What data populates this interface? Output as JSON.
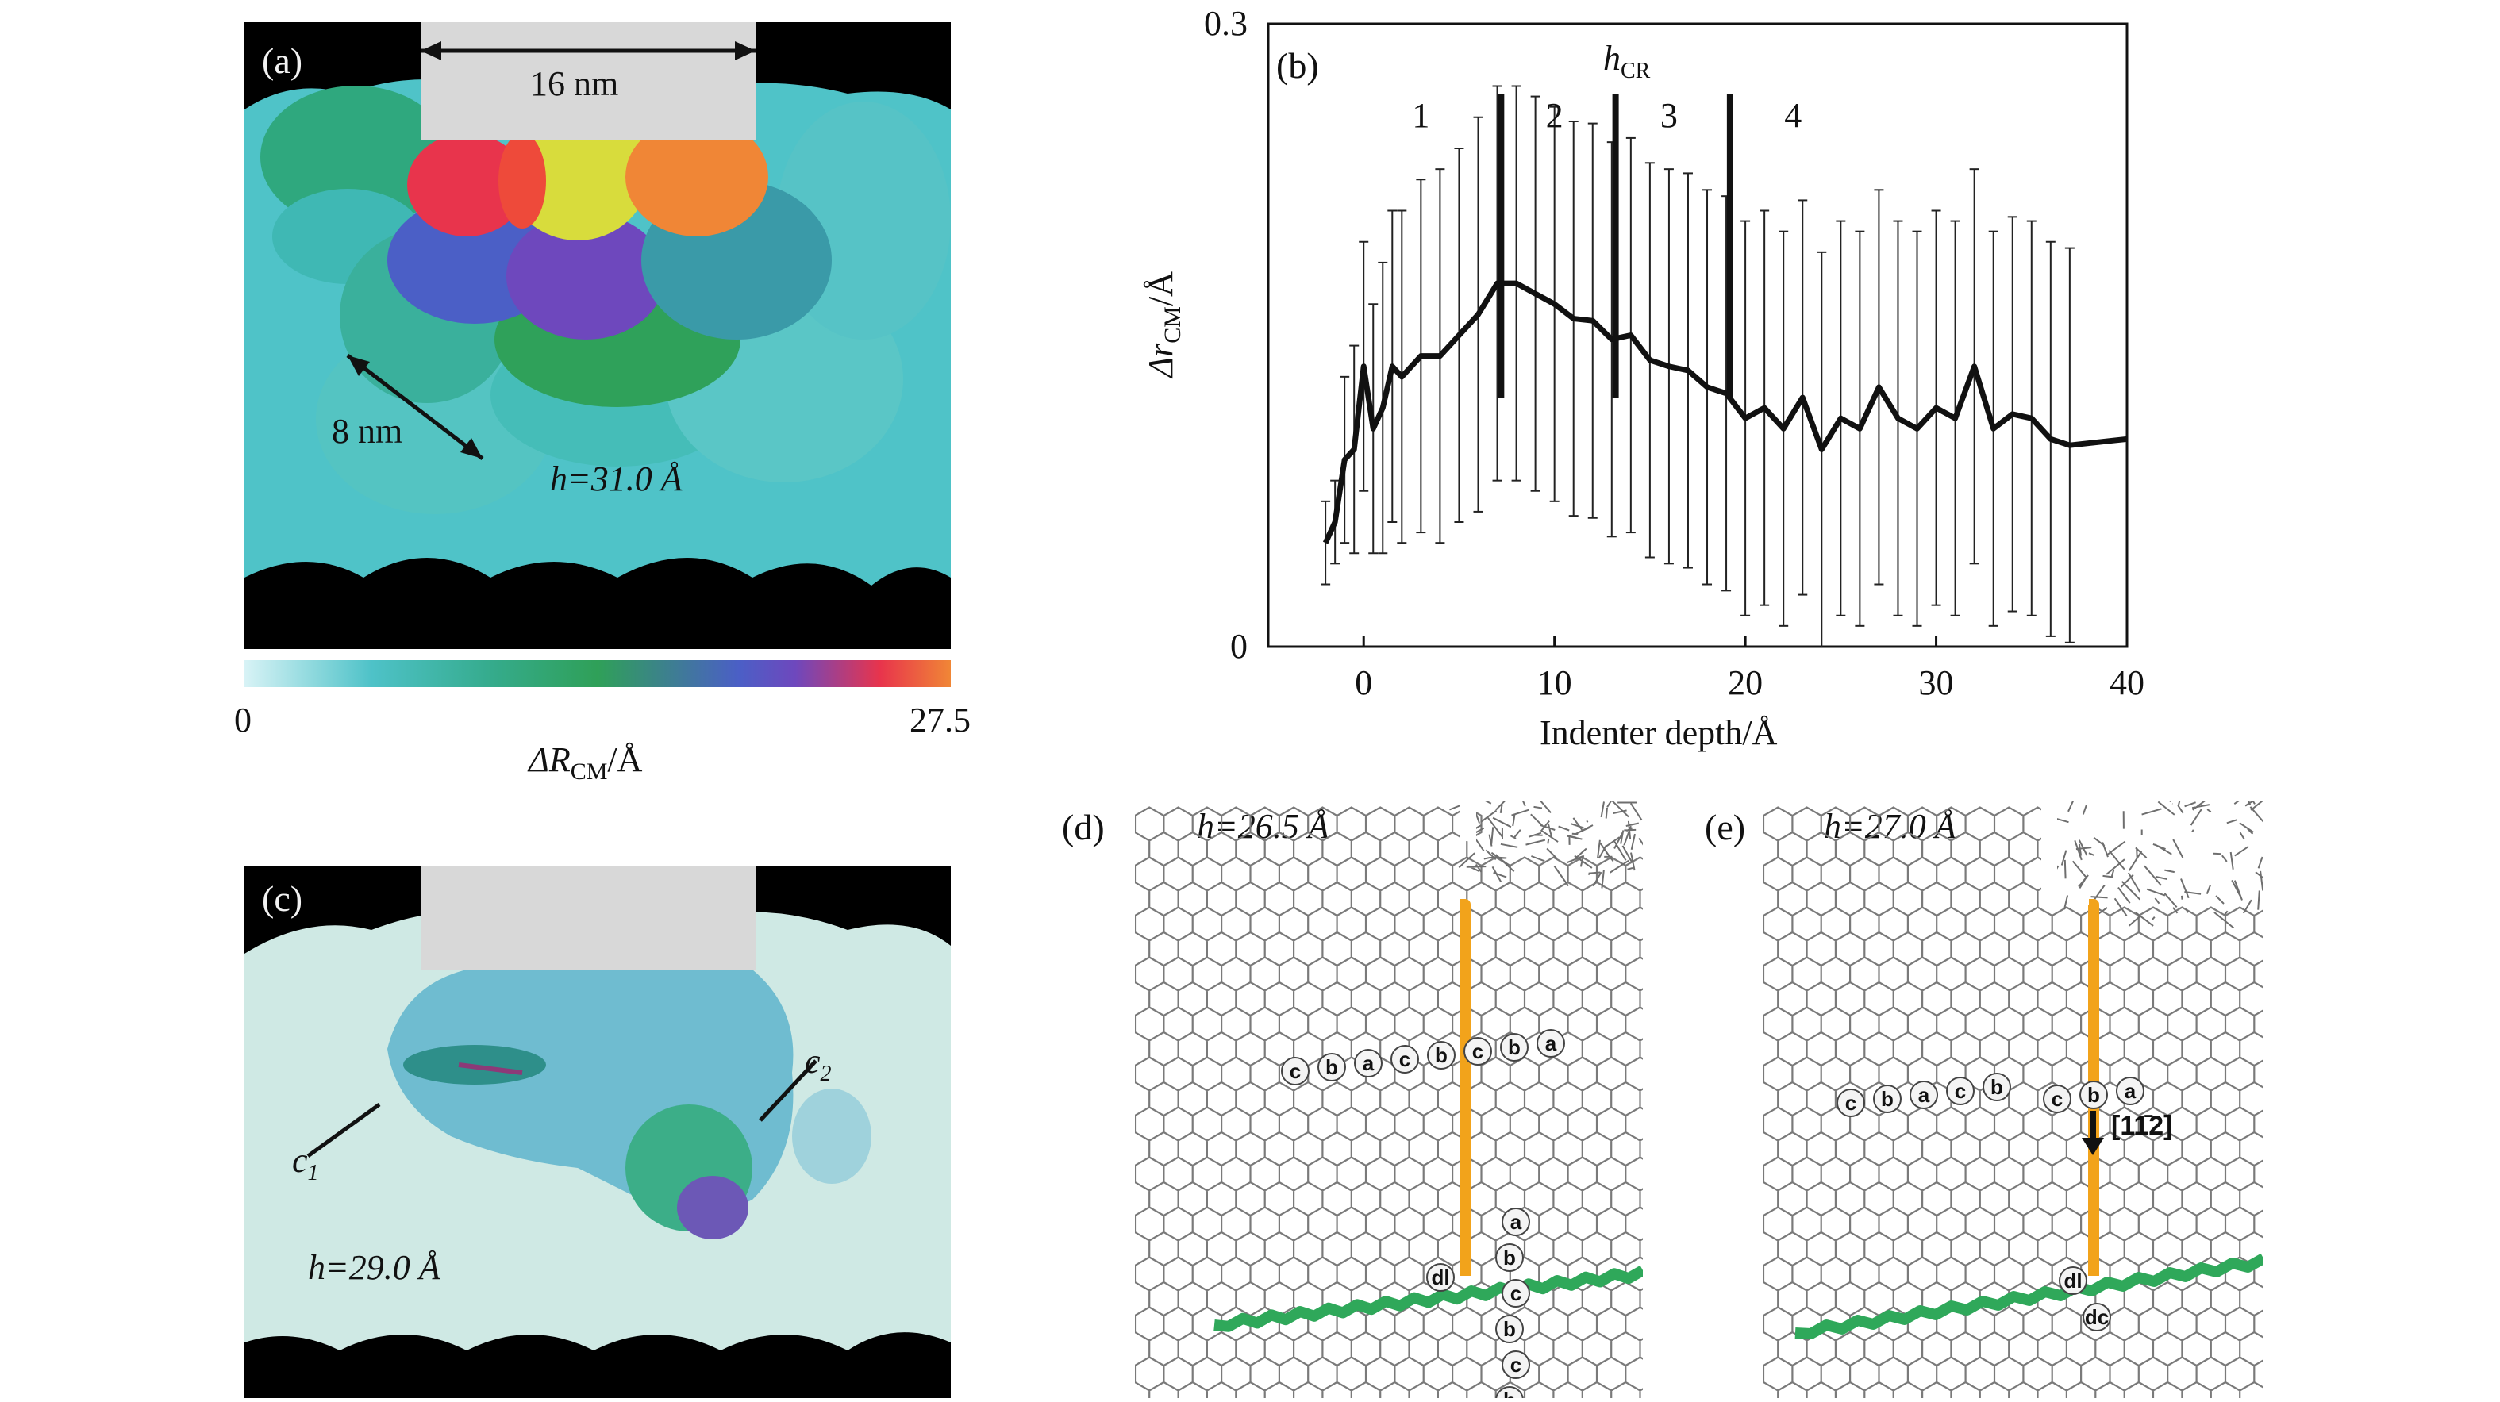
{
  "panel_a": {
    "label": "(a)",
    "scale_top": "16 nm",
    "scale_grain": "8 nm",
    "depth": "h=31.0 Å",
    "colorbar": {
      "min": "0",
      "max": "27.5",
      "title": "ΔR",
      "title_sub": "CM",
      "title_unit": "/Å"
    }
  },
  "panel_b": {
    "label": "(b)"
  },
  "panel_c": {
    "label": "(c)",
    "c1": "c",
    "c1_sub": "1",
    "c2": "c",
    "c2_sub": "2",
    "depth": "h=29.0 Å"
  },
  "panel_d": {
    "label": "(d)",
    "depth": "h=26.5 Å",
    "stack_labels": [
      "c",
      "b",
      "a",
      "c",
      "b",
      "c",
      "b",
      "a"
    ],
    "lower_labels": [
      "a",
      "b",
      "c",
      "b",
      "c",
      "b"
    ],
    "dl": "dl"
  },
  "panel_e": {
    "label": "(e)",
    "depth": "h=27.0 Å",
    "stack_labels": [
      "c",
      "b",
      "a",
      "c",
      "b",
      "c",
      "b",
      "a"
    ],
    "direction": "[11̄2]",
    "dl": "dl",
    "dc": "dc"
  },
  "chart_data": {
    "type": "line",
    "title": "",
    "xlabel": "Indenter depth/Å",
    "ylabel": "Δr",
    "ylabel_sub": "CM",
    "ylabel_unit": "/Å",
    "xlim": [
      -5,
      40
    ],
    "ylim": [
      0,
      0.3
    ],
    "xticks": [
      0,
      10,
      20,
      30,
      40
    ],
    "yticks": [
      0,
      0.3
    ],
    "yticklabels": [
      "0",
      "0.3"
    ],
    "regions": [
      "1",
      "2",
      "3",
      "4"
    ],
    "region_marker": "h",
    "region_marker_sub": "CR",
    "region_lines_x": [
      7.2,
      13.2,
      19.2
    ],
    "series": [
      {
        "name": "",
        "x": [
          -2,
          -1.5,
          -1,
          -0.5,
          0,
          0.5,
          1,
          1.5,
          2,
          3,
          4,
          5,
          6,
          7,
          8,
          9,
          10,
          11,
          12,
          13,
          14,
          15,
          16,
          17,
          18,
          19,
          20,
          21,
          22,
          23,
          24,
          25,
          26,
          27,
          28,
          29,
          30,
          31,
          32,
          33,
          34,
          35,
          36,
          37,
          40
        ],
        "y": [
          0.05,
          0.06,
          0.09,
          0.095,
          0.135,
          0.105,
          0.115,
          0.135,
          0.13,
          0.14,
          0.14,
          0.15,
          0.16,
          0.175,
          0.175,
          0.17,
          0.165,
          0.158,
          0.157,
          0.148,
          0.15,
          0.138,
          0.135,
          0.133,
          0.125,
          0.122,
          0.11,
          0.115,
          0.105,
          0.12,
          0.095,
          0.11,
          0.105,
          0.125,
          0.11,
          0.105,
          0.115,
          0.11,
          0.135,
          0.105,
          0.112,
          0.11,
          0.1,
          0.097,
          0.1
        ],
        "yerr": [
          0.02,
          0.02,
          0.04,
          0.05,
          0.06,
          0.06,
          0.07,
          0.075,
          0.08,
          0.085,
          0.09,
          0.09,
          0.095,
          0.095,
          0.095,
          0.095,
          0.095,
          0.095,
          0.095,
          0.095,
          0.095,
          0.095,
          0.095,
          0.095,
          0.095,
          0.095,
          0.095,
          0.095,
          0.095,
          0.095,
          0.095,
          0.095,
          0.095,
          0.095,
          0.095,
          0.095,
          0.095,
          0.095,
          0.095,
          0.095,
          0.095,
          0.095,
          0.095,
          0.095,
          0
        ]
      }
    ]
  }
}
